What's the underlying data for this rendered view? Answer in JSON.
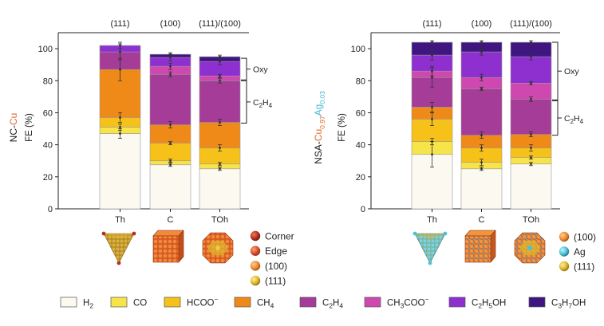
{
  "colors": {
    "H2": "#fbf9f0",
    "CO": "#f7e34a",
    "HCOO": "#f6c21a",
    "CH4": "#ef8a18",
    "C2H4": "#a43c98",
    "CH3COO": "#cf48b0",
    "C2H5OH": "#8e30cf",
    "C3H7OH": "#3f1680",
    "cu_accent": "#e0672a",
    "ag_accent": "#41b9d4"
  },
  "legend": [
    {
      "key": "H2",
      "base": "H",
      "sub": "2",
      "sup": ""
    },
    {
      "key": "CO",
      "base": "CO",
      "sub": "",
      "sup": ""
    },
    {
      "key": "HCOO",
      "base": "HCOO",
      "sub": "",
      "sup": "−"
    },
    {
      "key": "CH4",
      "base": "CH",
      "sub": "4",
      "sup": ""
    },
    {
      "key": "C2H4",
      "base": "C",
      "sub": "2",
      "tail": "H",
      "sub2": "4",
      "sup": ""
    },
    {
      "key": "CH3COO",
      "base": "CH",
      "sub": "3",
      "tail": "COO",
      "sup": "−"
    },
    {
      "key": "C2H5OH",
      "base": "C",
      "sub": "2",
      "tail": "H",
      "sub2": "5",
      "tail2": "OH",
      "sup": ""
    },
    {
      "key": "C3H7OH",
      "base": "C",
      "sub": "3",
      "tail": "H",
      "sub2": "7",
      "tail2": "OH",
      "sup": ""
    }
  ],
  "chart_data": [
    {
      "type": "bar",
      "stacked": true,
      "ylabel_name": "NC-Cu",
      "ylabel_fe": "FE (%)",
      "ylim": [
        0,
        110
      ],
      "yticks": [
        0,
        20,
        40,
        60,
        80,
        100
      ],
      "categories": [
        "Th",
        "C",
        "TOh"
      ],
      "facets": [
        "(111)",
        "(100)",
        "(111)/(100)"
      ],
      "series_order": [
        "H2",
        "CO",
        "HCOO",
        "CH4",
        "C2H4",
        "CH3COO",
        "C2H5OH",
        "C3H7OH"
      ],
      "series": {
        "H2": [
          47,
          27.5,
          25
        ],
        "CO": [
          4,
          2.5,
          3
        ],
        "HCOO": [
          6,
          11,
          10
        ],
        "CH4": [
          30,
          11.5,
          16
        ],
        "C2H4": [
          11,
          31.5,
          26
        ],
        "CH3COO": [
          0,
          5,
          3
        ],
        "C2H5OH": [
          4,
          5.5,
          9
        ],
        "C3H7OH": [
          0,
          2,
          3
        ]
      },
      "errors": [
        [
          [
            47,
            3
          ],
          [
            51,
            2
          ],
          [
            57,
            3
          ],
          [
            87,
            7
          ],
          [
            98,
            5
          ],
          [
            102,
            2
          ]
        ],
        [
          [
            27.5,
            1
          ],
          [
            30,
            1
          ],
          [
            41,
            1
          ],
          [
            52.5,
            2
          ],
          [
            84,
            1.5
          ],
          [
            89,
            2
          ],
          [
            94.5,
            2
          ],
          [
            96.5,
            1
          ]
        ],
        [
          [
            25,
            1
          ],
          [
            28,
            1
          ],
          [
            38,
            2
          ],
          [
            54,
            2
          ],
          [
            80,
            1.5
          ],
          [
            83,
            1
          ],
          [
            92,
            2
          ],
          [
            95,
            1
          ]
        ]
      ],
      "brackets": [
        {
          "label": "Oxy",
          "from": 80.5,
          "to": 94
        },
        {
          "label": "C2H4",
          "from": 53.5,
          "to": 80
        }
      ],
      "materials": [
        {
          "label": "Corner",
          "color": "#b2321f"
        },
        {
          "label": "Edge",
          "color": "#d8502a"
        },
        {
          "label": "(100)",
          "color": "#ee8a2e"
        },
        {
          "label": "(111)",
          "color": "#e0b62c"
        }
      ]
    },
    {
      "type": "bar",
      "stacked": true,
      "ylabel_name_main": "NSA-Cu",
      "ylabel_sub_cu": "0.97",
      "ylabel_ag": "Ag",
      "ylabel_sub_ag": "0.03",
      "ylabel_fe": "FE (%)",
      "ylim": [
        0,
        110
      ],
      "yticks": [
        0,
        20,
        40,
        60,
        80,
        100
      ],
      "categories": [
        "Th",
        "C",
        "TOh"
      ],
      "facets": [
        "(111)",
        "(100)",
        "(111)/(100)"
      ],
      "series_order": [
        "H2",
        "CO",
        "HCOO",
        "CH4",
        "C2H4",
        "CH3COO",
        "C2H5OH",
        "C3H7OH"
      ],
      "series": {
        "H2": [
          34,
          25,
          28
        ],
        "CO": [
          8,
          4,
          4
        ],
        "HCOO": [
          14,
          9,
          6
        ],
        "CH4": [
          7.5,
          8,
          8.5
        ],
        "C2H4": [
          18.5,
          29,
          22
        ],
        "CH3COO": [
          4,
          7,
          10
        ],
        "C2H5OH": [
          10,
          16,
          16.5
        ],
        "C3H7OH": [
          8,
          6,
          9
        ]
      },
      "errors": [
        [
          [
            34,
            8
          ],
          [
            42,
            2
          ],
          [
            56,
            4
          ],
          [
            63.5,
            3
          ],
          [
            82,
            6
          ],
          [
            86,
            3
          ],
          [
            96,
            3
          ],
          [
            104,
            1
          ]
        ],
        [
          [
            25,
            1
          ],
          [
            29,
            2
          ],
          [
            38,
            2
          ],
          [
            46,
            2
          ],
          [
            75,
            1
          ],
          [
            82,
            2
          ],
          [
            98,
            2
          ],
          [
            104,
            1
          ]
        ],
        [
          [
            28,
            1
          ],
          [
            32,
            1
          ],
          [
            38,
            2
          ],
          [
            46.5,
            1.5
          ],
          [
            68.5,
            1.5
          ],
          [
            78.5,
            1
          ],
          [
            95,
            2
          ],
          [
            104,
            1
          ]
        ]
      ],
      "brackets": [
        {
          "label": "Oxy",
          "from": 68,
          "to": 104
        },
        {
          "label": "C2H4",
          "from": 46,
          "to": 67.5
        }
      ],
      "materials": [
        {
          "label": "(100)",
          "color": "#ee8a2e"
        },
        {
          "label": "Ag",
          "color": "#4cc1d9"
        },
        {
          "label": "(111)",
          "color": "#e0b62c"
        }
      ]
    }
  ]
}
